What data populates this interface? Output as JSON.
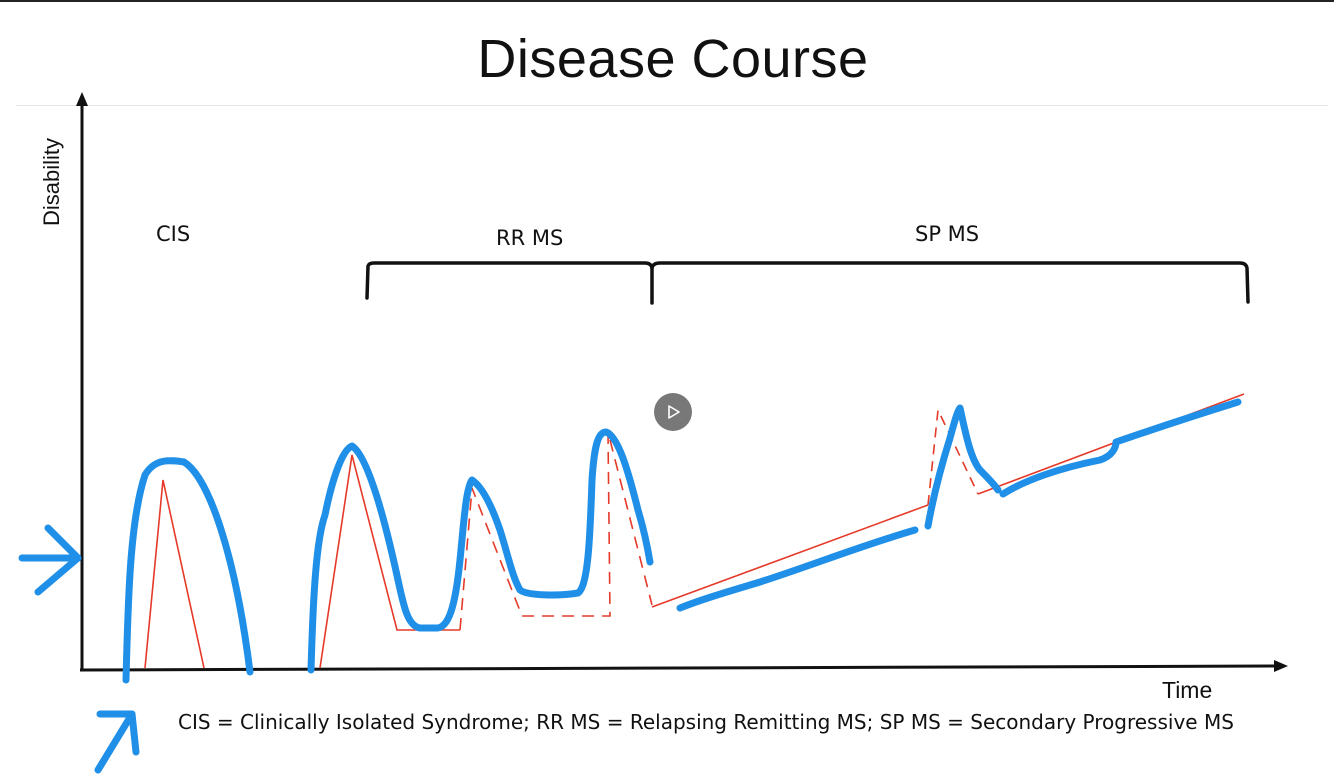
{
  "slide": {
    "title": "Disease Course",
    "y_axis_label": "Disability",
    "x_axis_label": "Time",
    "phases": [
      {
        "label": "CIS"
      },
      {
        "label": "RR MS"
      },
      {
        "label": "SP MS"
      }
    ],
    "footnote": "CIS = Clinically Isolated Syndrome; RR MS = Relapsing Remitting MS; SP MS = Secondary Progressive MS"
  },
  "player": {
    "play_icon": "play-icon"
  },
  "colors": {
    "axis": "#111111",
    "baseline_curve": "#e53a2a",
    "annotation_ink": "#1f8fe8",
    "bracket": "#111111"
  }
}
